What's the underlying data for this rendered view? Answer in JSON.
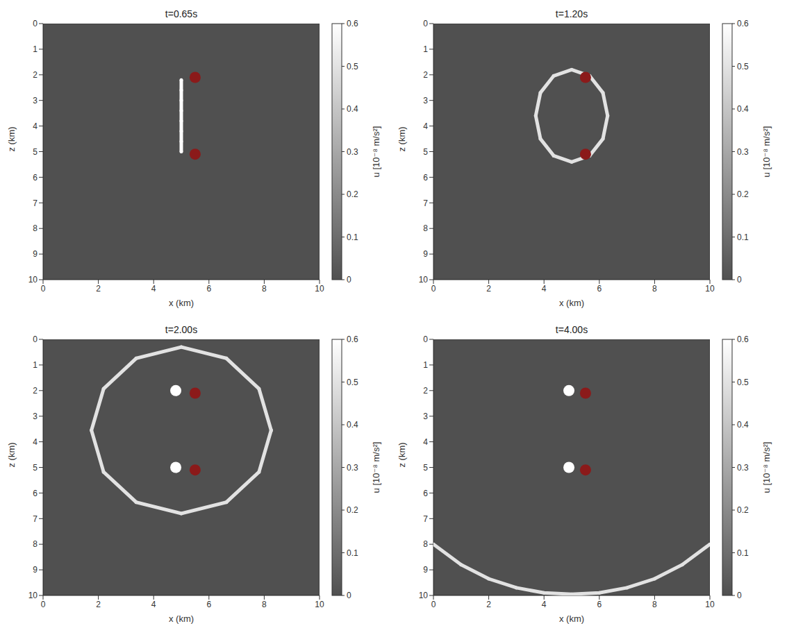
{
  "chart_data": [
    {
      "type": "scatter",
      "title": "t=0.65s",
      "x_label": "x (km)",
      "y_label": "z (km)",
      "xlim": [
        0,
        10
      ],
      "ylim": [
        10,
        0
      ],
      "xticks": [
        0,
        2,
        4,
        6,
        8,
        10
      ],
      "yticks": [
        0,
        1,
        2,
        3,
        4,
        5,
        6,
        7,
        8,
        9,
        10
      ],
      "colorbar": {
        "label": "u [10⁻⁸ m/s²]",
        "range": [
          0,
          0.6
        ],
        "ticks": [
          0,
          0.1,
          0.2,
          0.3,
          0.4,
          0.5,
          0.6
        ]
      },
      "series": [
        {
          "type": "line",
          "line_style": "solid",
          "value": 0.6,
          "x": [
            5,
            5,
            5,
            5,
            5,
            5,
            5,
            5
          ],
          "y": [
            2.2,
            2.6,
            3.0,
            3.4,
            3.8,
            4.2,
            4.6,
            5.0
          ]
        },
        {
          "type": "scatter",
          "marker": "circle",
          "color": "#8b1a1a",
          "x": [
            5.5,
            5.5
          ],
          "y": [
            2.1,
            5.1
          ]
        }
      ]
    },
    {
      "type": "scatter",
      "title": "t=1.20s",
      "x_label": "x (km)",
      "y_label": "z (km)",
      "xlim": [
        0,
        10
      ],
      "ylim": [
        10,
        0
      ],
      "xticks": [
        0,
        2,
        4,
        6,
        8,
        10
      ],
      "yticks": [
        0,
        1,
        2,
        3,
        4,
        5,
        6,
        7,
        8,
        9,
        10
      ],
      "colorbar": {
        "label": "u [10⁻⁸ m/s²]",
        "range": [
          0,
          0.6
        ],
        "ticks": [
          0,
          0.1,
          0.2,
          0.3,
          0.4,
          0.5,
          0.6
        ]
      },
      "series": [
        {
          "type": "line",
          "line_style": "solid",
          "value": 0.5,
          "x": [
            6.3,
            6.13,
            5.65,
            5.0,
            4.35,
            3.87,
            3.7,
            3.87,
            4.35,
            5.0,
            5.65,
            6.13,
            6.3
          ],
          "y": [
            3.6,
            4.5,
            5.16,
            5.4,
            5.16,
            4.5,
            3.6,
            2.7,
            2.04,
            1.8,
            2.04,
            2.7,
            3.6
          ]
        },
        {
          "type": "scatter",
          "marker": "circle",
          "color": "#8b1a1a",
          "x": [
            5.5,
            5.5
          ],
          "y": [
            2.1,
            5.1
          ]
        }
      ]
    },
    {
      "type": "scatter",
      "title": "t=2.00s",
      "x_label": "x (km)",
      "y_label": "z (km)",
      "xlim": [
        0,
        10
      ],
      "ylim": [
        10,
        0
      ],
      "xticks": [
        0,
        2,
        4,
        6,
        8,
        10
      ],
      "yticks": [
        0,
        1,
        2,
        3,
        4,
        5,
        6,
        7,
        8,
        9,
        10
      ],
      "colorbar": {
        "label": "u [10⁻⁸ m/s²]",
        "range": [
          0,
          0.6
        ],
        "ticks": [
          0,
          0.1,
          0.2,
          0.3,
          0.4,
          0.5,
          0.6
        ]
      },
      "series": [
        {
          "type": "line",
          "line_style": "solid",
          "value": 0.5,
          "x": [
            8.25,
            7.81,
            6.63,
            5.0,
            3.37,
            2.19,
            1.75,
            2.19,
            3.37,
            5.0,
            6.63,
            7.81,
            8.25
          ],
          "y": [
            3.55,
            5.18,
            6.36,
            6.8,
            6.36,
            5.18,
            3.55,
            1.93,
            0.74,
            0.3,
            0.74,
            1.93,
            3.55
          ]
        },
        {
          "type": "scatter",
          "marker": "circle",
          "value": 0.6,
          "x": [
            4.8,
            4.8
          ],
          "y": [
            2.0,
            5.0
          ]
        },
        {
          "type": "scatter",
          "marker": "circle",
          "color": "#8b1a1a",
          "x": [
            5.5,
            5.5
          ],
          "y": [
            2.1,
            5.1
          ]
        }
      ]
    },
    {
      "type": "scatter",
      "title": "t=4.00s",
      "x_label": "x (km)",
      "y_label": "z (km)",
      "xlim": [
        0,
        10
      ],
      "ylim": [
        10,
        0
      ],
      "xticks": [
        0,
        2,
        4,
        6,
        8,
        10
      ],
      "yticks": [
        0,
        1,
        2,
        3,
        4,
        5,
        6,
        7,
        8,
        9,
        10
      ],
      "colorbar": {
        "label": "u [10⁻⁸ m/s²]",
        "range": [
          0,
          0.6
        ],
        "ticks": [
          0,
          0.1,
          0.2,
          0.3,
          0.4,
          0.5,
          0.6
        ]
      },
      "series": [
        {
          "type": "line",
          "line_style": "solid",
          "value": 0.5,
          "x": [
            0,
            1,
            2,
            3,
            4,
            5,
            6,
            7,
            8,
            9,
            10
          ],
          "y": [
            8.0,
            8.8,
            9.35,
            9.7,
            9.9,
            9.95,
            9.9,
            9.7,
            9.35,
            8.8,
            8.0
          ]
        },
        {
          "type": "scatter",
          "marker": "circle",
          "value": 0.6,
          "x": [
            4.9,
            4.9
          ],
          "y": [
            2.0,
            5.0
          ]
        },
        {
          "type": "scatter",
          "marker": "circle",
          "color": "#8b1a1a",
          "x": [
            5.5,
            5.5
          ],
          "y": [
            2.1,
            5.1
          ]
        }
      ]
    }
  ]
}
